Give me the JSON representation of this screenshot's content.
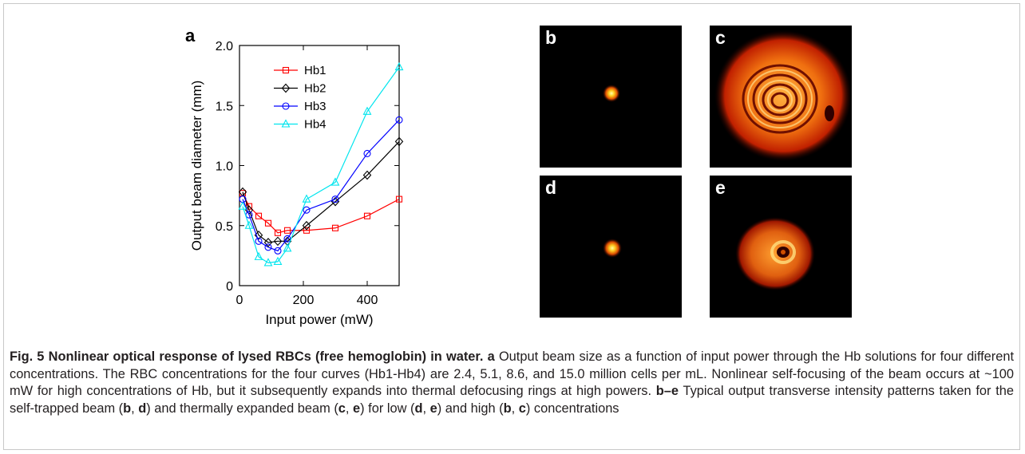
{
  "figure": {
    "panel_labels": {
      "a": "a",
      "b": "b",
      "c": "c",
      "d": "d",
      "e": "e"
    },
    "colors": {
      "Hb1": "#ff0000",
      "Hb2": "#000000",
      "Hb3": "#0000ff",
      "Hb4": "#00e5ee"
    }
  },
  "chart_data": {
    "type": "line",
    "xlabel": "Input power (mW)",
    "ylabel": "Output beam diameter (mm)",
    "xlim": [
      0,
      500
    ],
    "ylim": [
      0,
      2.0
    ],
    "xticks": [
      "0",
      "200",
      "400"
    ],
    "yticks": [
      "0",
      "0.5",
      "1.0",
      "1.5",
      "2.0"
    ],
    "legend_position": "top-left",
    "grid": false,
    "series": [
      {
        "name": "Hb1",
        "marker": "square",
        "x": [
          10,
          30,
          60,
          90,
          120,
          150,
          210,
          300,
          400,
          500
        ],
        "y": [
          0.77,
          0.66,
          0.58,
          0.52,
          0.44,
          0.46,
          0.46,
          0.48,
          0.58,
          0.72
        ]
      },
      {
        "name": "Hb2",
        "marker": "diamond",
        "x": [
          10,
          30,
          60,
          90,
          120,
          150,
          210,
          300,
          400,
          500
        ],
        "y": [
          0.78,
          0.63,
          0.42,
          0.36,
          0.37,
          0.37,
          0.5,
          0.7,
          0.92,
          1.2
        ]
      },
      {
        "name": "Hb3",
        "marker": "circle",
        "x": [
          10,
          30,
          60,
          90,
          120,
          150,
          210,
          300,
          400,
          500
        ],
        "y": [
          0.72,
          0.59,
          0.37,
          0.32,
          0.29,
          0.39,
          0.63,
          0.72,
          1.1,
          1.38
        ]
      },
      {
        "name": "Hb4",
        "marker": "triangle",
        "x": [
          10,
          30,
          60,
          90,
          120,
          150,
          210,
          300,
          400,
          500
        ],
        "y": [
          0.66,
          0.5,
          0.24,
          0.19,
          0.2,
          0.31,
          0.72,
          0.86,
          1.45,
          1.82
        ]
      }
    ]
  },
  "caption": {
    "fig_label": "Fig. 5",
    "title": "Nonlinear optical response of lysed RBCs (free hemoglobin) in water.",
    "a_label": "a",
    "a_text": "Output beam size as a function of input power through the Hb solutions for four different concentrations. The RBC concentrations for the four curves (Hb1-Hb4) are 2.4, 5.1, 8.6, and 15.0 million cells per mL. Nonlinear self-focusing of the beam occurs at ~100 mW for high concentrations of Hb, but it subsequently expands into thermal defocusing rings at high powers.",
    "be_label": "b–e",
    "be_text_1": "Typical output transverse intensity patterns taken for the self-trapped beam (",
    "ref_b1": "b",
    "sep_1": ", ",
    "ref_d1": "d",
    "be_text_2": ") and thermally expanded beam (",
    "ref_c1": "c",
    "sep_2": ", ",
    "ref_e1": "e",
    "be_text_3": ") for low (",
    "ref_d2": "d",
    "sep_3": ", ",
    "ref_e2": "e",
    "be_text_4": ") and high (",
    "ref_b2": "b",
    "sep_4": ", ",
    "ref_c2": "c",
    "be_text_5": ") concentrations"
  }
}
